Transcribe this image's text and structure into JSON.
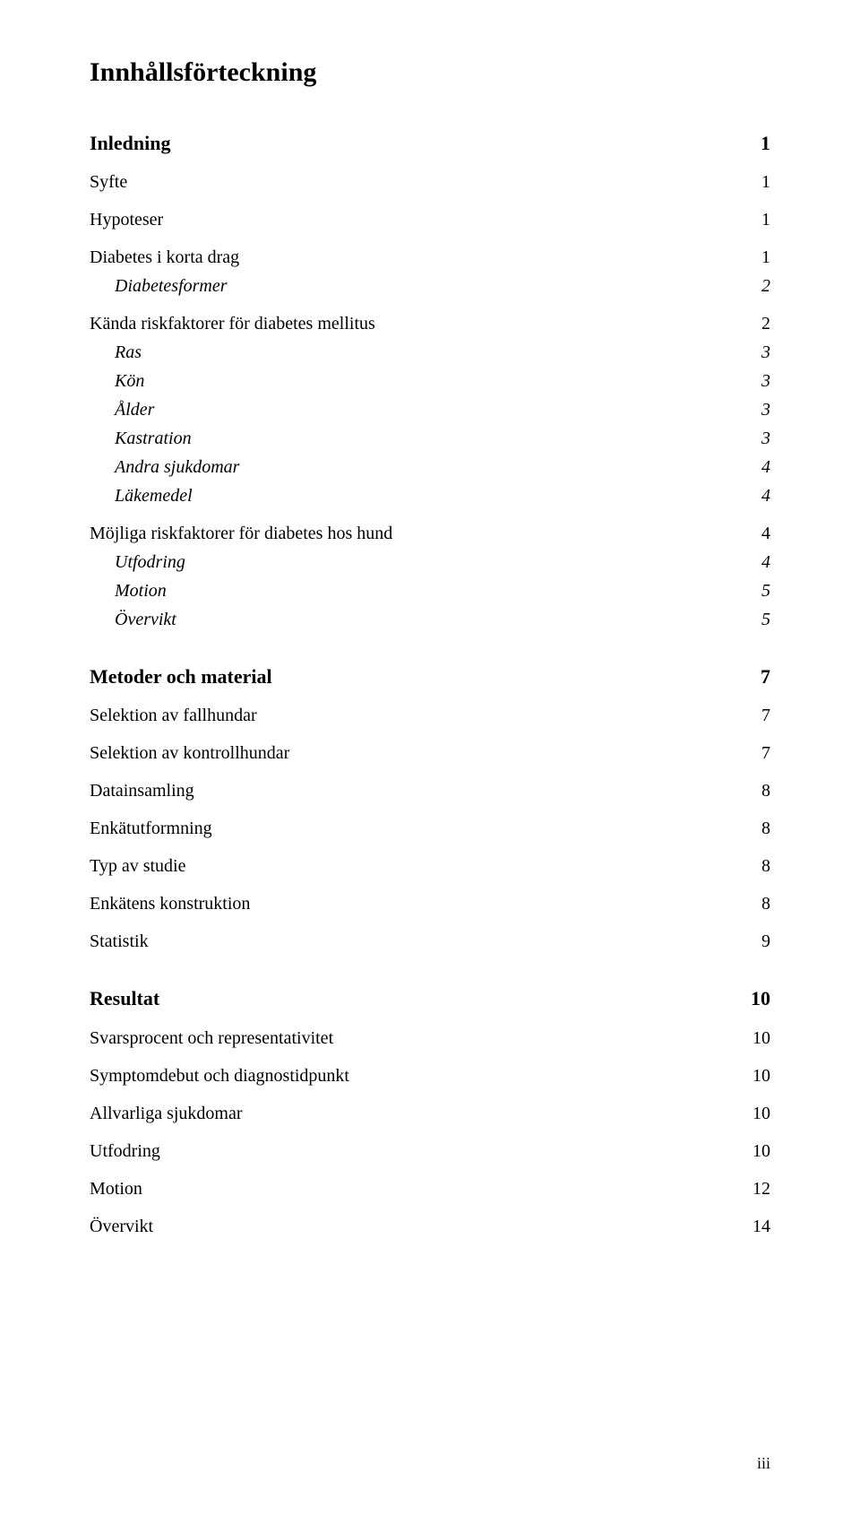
{
  "title": "Innhållsförteckning",
  "page_number_roman": "iii",
  "sections": {
    "inledning": {
      "label": "Inledning",
      "page": "1"
    },
    "syfte": {
      "label": "Syfte",
      "page": "1"
    },
    "hypoteser": {
      "label": "Hypoteser",
      "page": "1"
    },
    "diabetes_korta": {
      "label": "Diabetes i korta drag",
      "page": "1"
    },
    "diabetesformer": {
      "label": "Diabetesformer",
      "page": "2"
    },
    "kanda_riskfaktorer": {
      "label": "Kända riskfaktorer för diabetes mellitus",
      "page": "2"
    },
    "ras": {
      "label": "Ras",
      "page": "3"
    },
    "kon": {
      "label": "Kön",
      "page": "3"
    },
    "alder": {
      "label": "Ålder",
      "page": "3"
    },
    "kastration": {
      "label": "Kastration",
      "page": "3"
    },
    "andra_sjukdomar": {
      "label": "Andra sjukdomar",
      "page": "4"
    },
    "lakemedel": {
      "label": "Läkemedel",
      "page": "4"
    },
    "mojliga_riskfaktorer": {
      "label": "Möjliga riskfaktorer för diabetes hos hund",
      "page": "4"
    },
    "utfodring": {
      "label": "Utfodring",
      "page": "4"
    },
    "motion": {
      "label": "Motion",
      "page": "5"
    },
    "overvikt": {
      "label": "Övervikt",
      "page": "5"
    },
    "metoder": {
      "label": "Metoder och material",
      "page": "7"
    },
    "selektion_fall": {
      "label": "Selektion av fallhundar",
      "page": "7"
    },
    "selektion_kontroll": {
      "label": "Selektion av kontrollhundar",
      "page": "7"
    },
    "datainsamling": {
      "label": "Datainsamling",
      "page": "8"
    },
    "enkatutformning": {
      "label": "Enkätutformning",
      "page": "8"
    },
    "typ_av_studie": {
      "label": "Typ av studie",
      "page": "8"
    },
    "enkatens_konstr": {
      "label": "Enkätens konstruktion",
      "page": "8"
    },
    "statistik": {
      "label": "Statistik",
      "page": "9"
    },
    "resultat": {
      "label": "Resultat",
      "page": "10"
    },
    "svarsprocent": {
      "label": "Svarsprocent och representativitet",
      "page": "10"
    },
    "symptomdebut": {
      "label": "Symptomdebut och diagnostidpunkt",
      "page": "10"
    },
    "allvarliga": {
      "label": "Allvarliga sjukdomar",
      "page": "10"
    },
    "utfodring2": {
      "label": "Utfodring",
      "page": "10"
    },
    "motion2": {
      "label": "Motion",
      "page": "12"
    },
    "overvikt2": {
      "label": "Övervikt",
      "page": "14"
    }
  }
}
